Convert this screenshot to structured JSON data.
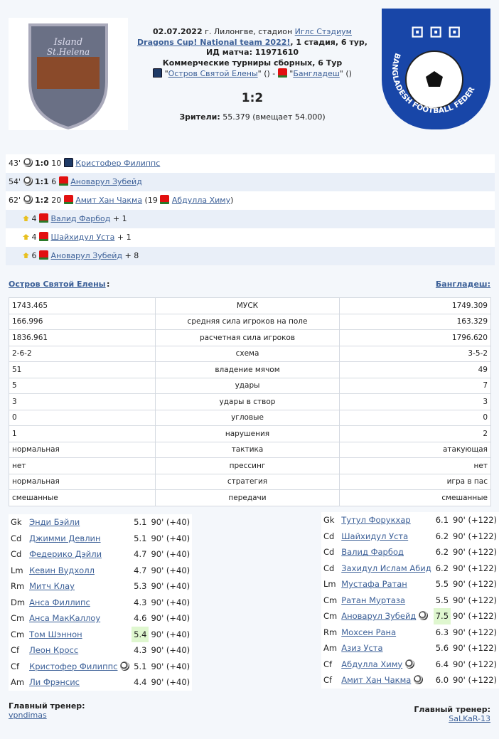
{
  "header": {
    "date": "02.07.2022",
    "city": " г. Лилонгве, стадион ",
    "stadium": "Иглс Стэдиум",
    "tournament": "Dragons Cup! National team 2022!",
    "stage": ", 1 стадия, 6 тур,",
    "match_id": "ИД матча: 11971610",
    "series": "Коммерческие турниры сборных, 6 Тур",
    "home": "Остров Святой Елены",
    "away": "Бангладеш",
    "score": "1:2",
    "crowd_label": "Зрители:",
    "crowd": " 55.379 (вмещает 54.000)",
    "home_logo_text": "Island St.Helena",
    "away_logo_text": "BANGLADESH FOOTBALL FEDERATION"
  },
  "events": [
    {
      "min": "43'",
      "type": "goal",
      "score": "1:0",
      "num": "10",
      "team": "home",
      "player": "Кристофер Филиппс"
    },
    {
      "min": "54'",
      "type": "goal",
      "score": "1:1",
      "num": "6",
      "team": "away",
      "player": "Ановарул Зубейд"
    },
    {
      "min": "62'",
      "type": "goal",
      "score": "1:2",
      "num": "20",
      "team": "away",
      "player": "Амит Хан Чакма",
      "assist_num": "19",
      "assist": "Абдулла Химу"
    },
    {
      "type": "up",
      "num": "4",
      "team": "away",
      "player": "Валид Фарбод",
      "extra": "+ 1"
    },
    {
      "type": "up",
      "num": "4",
      "team": "away",
      "player": "Шайхидул Уста",
      "extra": "+ 1"
    },
    {
      "type": "up",
      "num": "6",
      "team": "away",
      "player": "Ановарул Зубейд",
      "extra": "+ 8"
    }
  ],
  "stats": [
    [
      "1743.465",
      "МУСК",
      "1749.309"
    ],
    [
      "166.996",
      "средняя сила игроков на поле",
      "163.329"
    ],
    [
      "1836.961",
      "расчетная сила игроков",
      "1796.620"
    ],
    [
      "2-6-2",
      "схема",
      "3-5-2"
    ],
    [
      "51",
      "владение мячом",
      "49"
    ],
    [
      "5",
      "удары",
      "7"
    ],
    [
      "3",
      "удары в створ",
      "3"
    ],
    [
      "0",
      "угловые",
      "0"
    ],
    [
      "1",
      "нарушения",
      "2"
    ],
    [
      "нормальная",
      "тактика",
      "атакующая"
    ],
    [
      "нет",
      "прессинг",
      "нет"
    ],
    [
      "нормальная",
      "стратегия",
      "игра в пас"
    ],
    [
      "смешанные",
      "передачи",
      "смешанные"
    ]
  ],
  "lineup_home": [
    {
      "pos": "Gk",
      "name": "Энди Бэйли",
      "rating": "5.1",
      "time": "90' (+40)"
    },
    {
      "pos": "Cd",
      "name": "Джимми Девлин",
      "rating": "5.1",
      "time": "90' (+40)"
    },
    {
      "pos": "Cd",
      "name": "Федерико Дэйли",
      "rating": "4.7",
      "time": "90' (+40)"
    },
    {
      "pos": "Lm",
      "name": "Кевин Вудхолл",
      "rating": "4.7",
      "time": "90' (+40)"
    },
    {
      "pos": "Rm",
      "name": "Митч Клау",
      "rating": "5.3",
      "time": "90' (+40)"
    },
    {
      "pos": "Dm",
      "name": "Анса Филлипс",
      "rating": "4.3",
      "time": "90' (+40)"
    },
    {
      "pos": "Cm",
      "name": "Анса МакКаллоу",
      "rating": "4.6",
      "time": "90' (+40)"
    },
    {
      "pos": "Cm",
      "name": "Том Шэннон",
      "rating": "5.4",
      "time": "90' (+40)",
      "best": true
    },
    {
      "pos": "Cf",
      "name": "Леон Кросс",
      "rating": "4.3",
      "time": "90' (+40)"
    },
    {
      "pos": "Cf",
      "name": "Кристофер Филиппс",
      "rating": "5.1",
      "time": "90' (+40)",
      "goal": true
    },
    {
      "pos": "Am",
      "name": "Ли Фрэнсис",
      "rating": "4.4",
      "time": "90' (+40)"
    }
  ],
  "lineup_away": [
    {
      "pos": "Gk",
      "name": "Тутул Форукхар",
      "rating": "6.1",
      "time": "90' (+122)"
    },
    {
      "pos": "Cd",
      "name": "Шайхидул Уста",
      "rating": "6.2",
      "time": "90' (+122)"
    },
    {
      "pos": "Cd",
      "name": "Валид Фарбод",
      "rating": "6.2",
      "time": "90' (+122)"
    },
    {
      "pos": "Cd",
      "name": "Захидул Ислам Абид",
      "rating": "6.2",
      "time": "90' (+122)"
    },
    {
      "pos": "Lm",
      "name": "Мустафа Ратан",
      "rating": "5.5",
      "time": "90' (+122)"
    },
    {
      "pos": "Cm",
      "name": "Ратан Муртаза",
      "rating": "5.5",
      "time": "90' (+122)"
    },
    {
      "pos": "Cm",
      "name": "Ановарул Зубейд",
      "rating": "7.5",
      "time": "90' (+122)",
      "goal": true,
      "best": true
    },
    {
      "pos": "Rm",
      "name": "Мохсен Рана",
      "rating": "6.3",
      "time": "90' (+122)"
    },
    {
      "pos": "Am",
      "name": "Азиз Уста",
      "rating": "5.6",
      "time": "90' (+122)"
    },
    {
      "pos": "Cf",
      "name": "Абдулла Химу",
      "rating": "6.4",
      "time": "90' (+122)",
      "goal": true
    },
    {
      "pos": "Cf",
      "name": "Амит Хан Чакма",
      "rating": "6.0",
      "time": "90' (+122)",
      "goal": true
    }
  ],
  "coach": {
    "label": "Главный тренер:",
    "home": "vpndimas",
    "away": "SaLKaR-13"
  }
}
